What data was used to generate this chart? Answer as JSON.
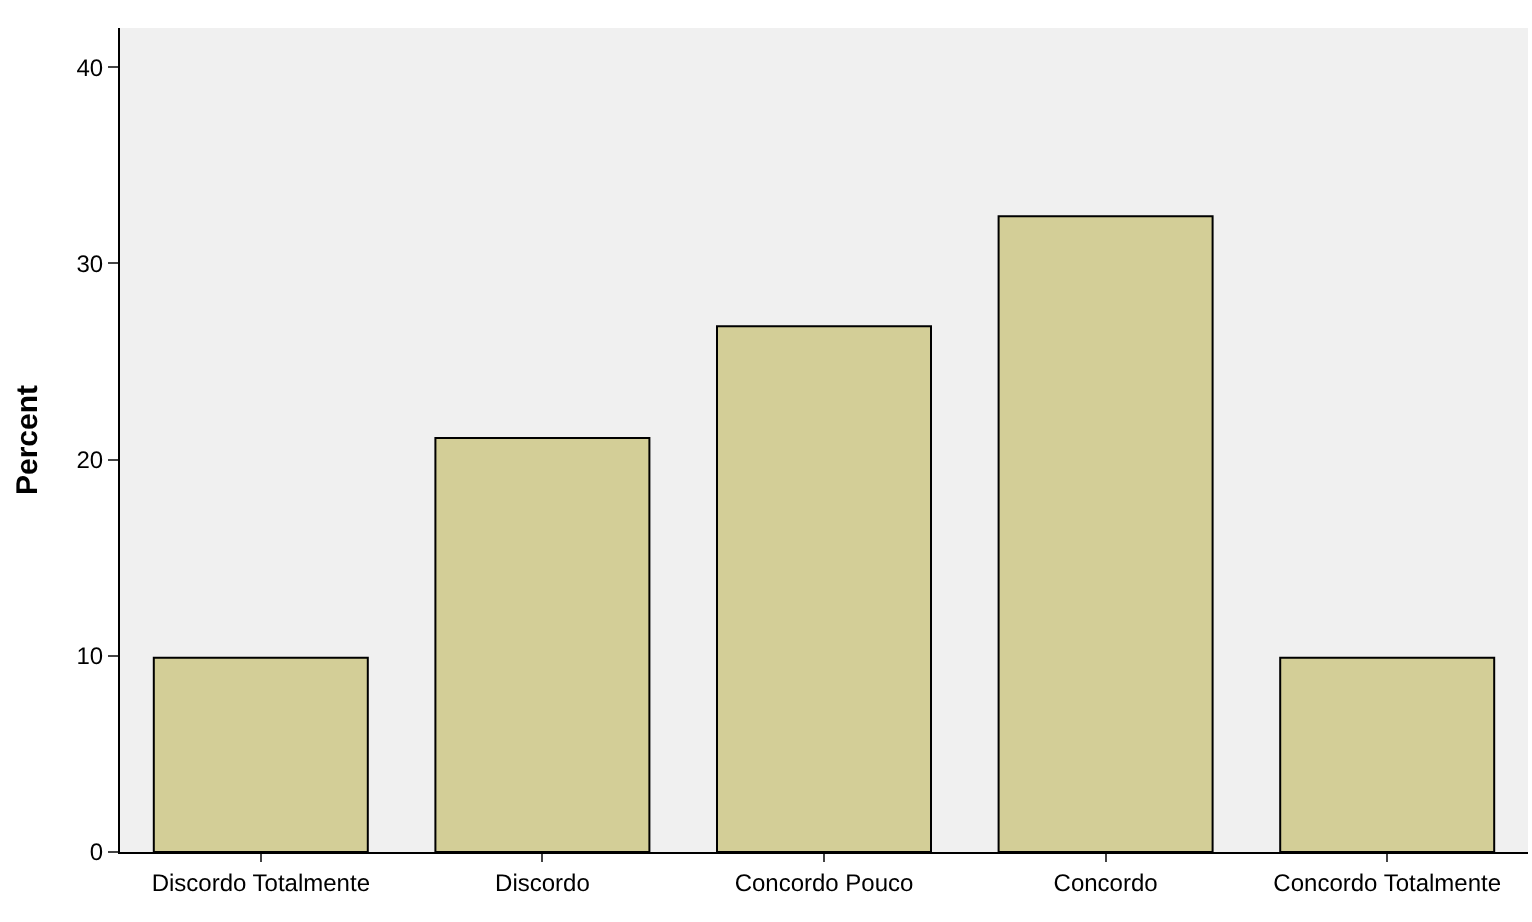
{
  "chart_data": {
    "type": "bar",
    "ylabel": "Percent",
    "categories": [
      "Discordo Totalmente",
      "Discordo",
      "Concordo Pouco",
      "Concordo",
      "Concordo Totalmente"
    ],
    "values": [
      9.9,
      21.1,
      26.8,
      32.4,
      9.9
    ],
    "color": "#d3ce97",
    "ylim": [
      0,
      42
    ],
    "yticks": [
      0,
      10,
      20,
      30,
      40
    ]
  }
}
